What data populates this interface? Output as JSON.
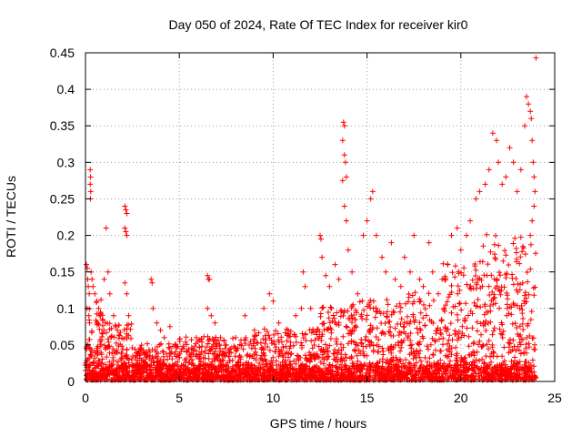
{
  "chart_data": {
    "type": "scatter",
    "title": "Day 050 of 2024, Rate Of TEC Index for receiver kir0",
    "xlabel": "GPS time / hours",
    "ylabel": "ROTI / TECUs",
    "xlim": [
      0,
      25
    ],
    "ylim": [
      0,
      0.45
    ],
    "x_ticks": [
      "0",
      "5",
      "10",
      "15",
      "20",
      "25"
    ],
    "y_ticks": [
      "0",
      "0.05",
      "0.1",
      "0.15",
      "0.2",
      "0.25",
      "0.3",
      "0.35",
      "0.4",
      "0.45"
    ],
    "grid": true,
    "marker": "+",
    "series": [
      {
        "name": "ROTI",
        "color": "#ff0000",
        "points": [
          [
            0.05,
            0.16
          ],
          [
            0.1,
            0.155
          ],
          [
            0.12,
            0.14
          ],
          [
            0.15,
            0.13
          ],
          [
            0.2,
            0.12
          ],
          [
            0.08,
            0.1
          ],
          [
            0.18,
            0.09
          ],
          [
            0.22,
            0.08
          ],
          [
            0.25,
            0.29
          ],
          [
            0.27,
            0.28
          ],
          [
            0.25,
            0.27
          ],
          [
            0.28,
            0.26
          ],
          [
            0.26,
            0.25
          ],
          [
            0.3,
            0.15
          ],
          [
            0.35,
            0.14
          ],
          [
            0.4,
            0.13
          ],
          [
            0.5,
            0.12
          ],
          [
            0.6,
            0.11
          ],
          [
            0.7,
            0.1
          ],
          [
            0.8,
            0.09
          ],
          [
            0.9,
            0.085
          ],
          [
            1.1,
            0.21
          ],
          [
            1.2,
            0.15
          ],
          [
            1.0,
            0.14
          ],
          [
            1.3,
            0.12
          ],
          [
            1.5,
            0.09
          ],
          [
            1.7,
            0.07
          ],
          [
            2.1,
            0.24
          ],
          [
            2.15,
            0.235
          ],
          [
            2.2,
            0.23
          ],
          [
            2.1,
            0.21
          ],
          [
            2.15,
            0.205
          ],
          [
            2.2,
            0.2
          ],
          [
            2.1,
            0.135
          ],
          [
            2.2,
            0.12
          ],
          [
            2.3,
            0.09
          ],
          [
            3.5,
            0.14
          ],
          [
            3.55,
            0.135
          ],
          [
            3.6,
            0.1
          ],
          [
            3.8,
            0.08
          ],
          [
            4.0,
            0.07
          ],
          [
            4.2,
            0.06
          ],
          [
            4.5,
            0.075
          ],
          [
            4.8,
            0.05
          ],
          [
            6.5,
            0.145
          ],
          [
            6.55,
            0.14
          ],
          [
            6.6,
            0.14
          ],
          [
            6.5,
            0.1
          ],
          [
            6.7,
            0.09
          ],
          [
            6.9,
            0.08
          ],
          [
            7.2,
            0.06
          ],
          [
            7.5,
            0.05
          ],
          [
            8.0,
            0.06
          ],
          [
            8.5,
            0.09
          ],
          [
            9.0,
            0.07
          ],
          [
            9.5,
            0.1
          ],
          [
            9.8,
            0.12
          ],
          [
            10.0,
            0.11
          ],
          [
            10.3,
            0.08
          ],
          [
            10.8,
            0.07
          ],
          [
            11.2,
            0.09
          ],
          [
            11.5,
            0.1
          ],
          [
            11.7,
            0.13
          ],
          [
            11.6,
            0.15
          ],
          [
            12.0,
            0.1
          ],
          [
            12.5,
            0.2
          ],
          [
            12.55,
            0.195
          ],
          [
            12.6,
            0.17
          ],
          [
            12.8,
            0.145
          ],
          [
            13.0,
            0.13
          ],
          [
            13.3,
            0.16
          ],
          [
            13.5,
            0.14
          ],
          [
            13.7,
            0.33
          ],
          [
            13.75,
            0.355
          ],
          [
            13.8,
            0.35
          ],
          [
            13.8,
            0.31
          ],
          [
            13.85,
            0.3
          ],
          [
            13.9,
            0.28
          ],
          [
            13.7,
            0.275
          ],
          [
            13.8,
            0.24
          ],
          [
            13.9,
            0.22
          ],
          [
            14.0,
            0.18
          ],
          [
            14.2,
            0.15
          ],
          [
            14.5,
            0.12
          ],
          [
            14.8,
            0.2
          ],
          [
            15.0,
            0.22
          ],
          [
            15.2,
            0.25
          ],
          [
            15.3,
            0.26
          ],
          [
            15.5,
            0.2
          ],
          [
            15.8,
            0.17
          ],
          [
            16.0,
            0.15
          ],
          [
            16.3,
            0.19
          ],
          [
            16.5,
            0.14
          ],
          [
            16.8,
            0.13
          ],
          [
            17.0,
            0.17
          ],
          [
            17.3,
            0.15
          ],
          [
            17.5,
            0.2
          ],
          [
            17.8,
            0.14
          ],
          [
            18.0,
            0.13
          ],
          [
            18.3,
            0.19
          ],
          [
            18.5,
            0.15
          ],
          [
            18.8,
            0.12
          ],
          [
            19.0,
            0.14
          ],
          [
            19.3,
            0.16
          ],
          [
            19.5,
            0.2
          ],
          [
            19.8,
            0.21
          ],
          [
            20.0,
            0.18
          ],
          [
            20.3,
            0.2
          ],
          [
            20.5,
            0.22
          ],
          [
            20.8,
            0.25
          ],
          [
            21.0,
            0.26
          ],
          [
            21.3,
            0.27
          ],
          [
            21.5,
            0.29
          ],
          [
            21.7,
            0.34
          ],
          [
            21.9,
            0.33
          ],
          [
            22.0,
            0.3
          ],
          [
            22.2,
            0.27
          ],
          [
            22.4,
            0.28
          ],
          [
            22.6,
            0.32
          ],
          [
            22.8,
            0.3
          ],
          [
            23.0,
            0.26
          ],
          [
            23.2,
            0.29
          ],
          [
            23.4,
            0.35
          ],
          [
            23.5,
            0.39
          ],
          [
            23.6,
            0.38
          ],
          [
            23.7,
            0.37
          ],
          [
            23.75,
            0.36
          ],
          [
            23.8,
            0.33
          ],
          [
            23.85,
            0.3
          ],
          [
            23.9,
            0.28
          ],
          [
            24.0,
            0.443
          ],
          [
            23.95,
            0.26
          ],
          [
            23.9,
            0.24
          ],
          [
            23.8,
            0.22
          ],
          [
            23.7,
            0.2
          ]
        ],
        "synthetic_dense_band": {
          "x_start": 0.0,
          "x_end": 24.0,
          "note": "dense cloud of ROTI samples near baseline"
        }
      }
    ]
  }
}
